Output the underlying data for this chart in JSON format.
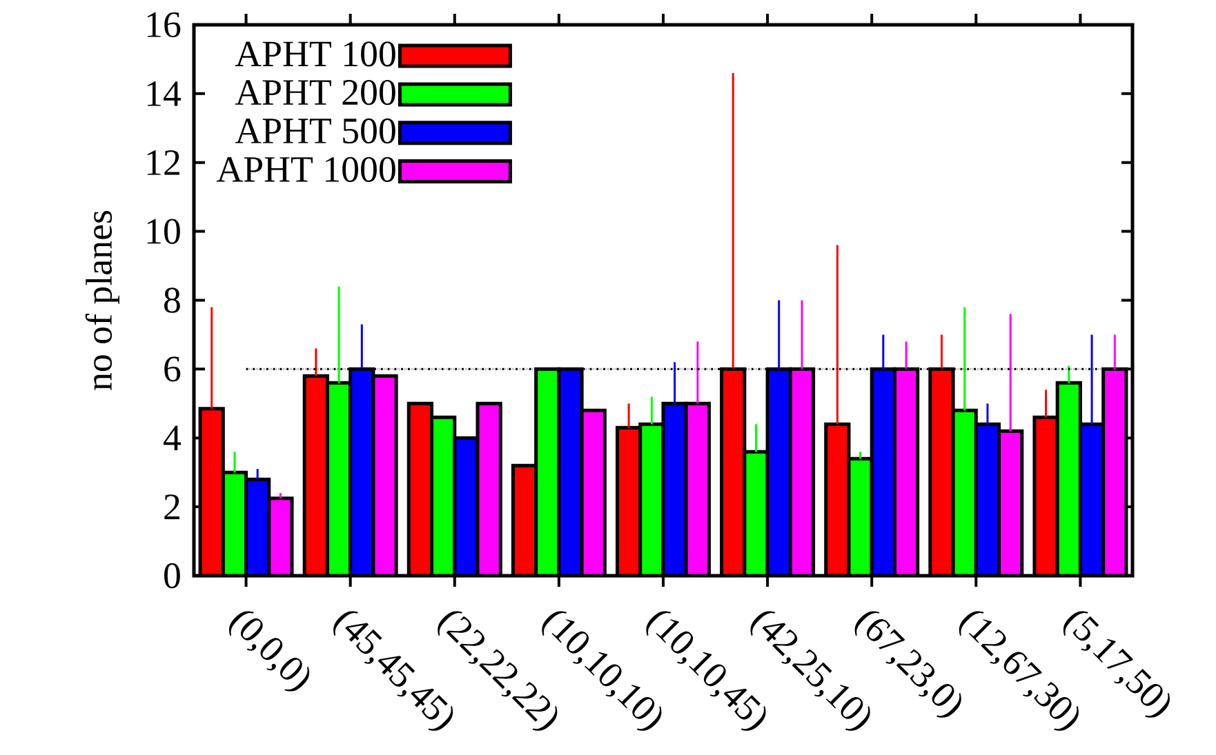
{
  "chart_data": {
    "type": "bar",
    "ylabel": "no of planes",
    "categories": [
      "(0,0,0)",
      "(45,45,45)",
      "(22,22,22)",
      "(10,10,10)",
      "(10,10,45)",
      "(42,25,10)",
      "(67,23,0)",
      "(12,67,30)",
      "(5,17,50)"
    ],
    "series": [
      {
        "name": "APHT 100",
        "color": "#ff0000",
        "values": [
          4.85,
          5.8,
          5.0,
          3.2,
          4.3,
          6.0,
          4.4,
          6.0,
          4.6
        ],
        "errors": [
          [
            4.85,
            7.8
          ],
          [
            5.8,
            6.6
          ],
          null,
          null,
          [
            4.3,
            5.0
          ],
          [
            6.0,
            14.6
          ],
          [
            4.4,
            9.6
          ],
          [
            6.0,
            7.0
          ],
          [
            4.6,
            5.4
          ]
        ]
      },
      {
        "name": "APHT 200",
        "color": "#00ff00",
        "values": [
          3.0,
          5.6,
          4.6,
          6.0,
          4.4,
          3.6,
          3.4,
          4.8,
          5.6
        ],
        "errors": [
          [
            3.0,
            3.6
          ],
          [
            5.6,
            8.4
          ],
          null,
          null,
          [
            4.4,
            5.2
          ],
          [
            3.6,
            4.4
          ],
          [
            3.4,
            3.6
          ],
          [
            4.8,
            7.8
          ],
          [
            5.6,
            6.1
          ]
        ]
      },
      {
        "name": "APHT 500",
        "color": "#0000ff",
        "values": [
          2.8,
          6.0,
          4.0,
          6.0,
          5.0,
          6.0,
          6.0,
          4.4,
          4.4
        ],
        "errors": [
          [
            2.8,
            3.1
          ],
          [
            6.0,
            7.3
          ],
          null,
          null,
          [
            5.0,
            6.2
          ],
          [
            6.0,
            8.0
          ],
          [
            6.0,
            7.0
          ],
          [
            4.4,
            5.0
          ],
          [
            4.4,
            7.0
          ]
        ]
      },
      {
        "name": "APHT 1000",
        "color": "#ff00ff",
        "values": [
          2.25,
          5.8,
          5.0,
          4.8,
          5.0,
          6.0,
          6.0,
          4.2,
          6.0
        ],
        "errors": [
          [
            2.25,
            2.4
          ],
          null,
          null,
          null,
          [
            5.0,
            6.8
          ],
          [
            6.0,
            8.0
          ],
          [
            6.0,
            6.8
          ],
          [
            4.2,
            7.6
          ],
          [
            6.0,
            7.0
          ]
        ]
      }
    ],
    "ylim": [
      0,
      16
    ],
    "yticks": [
      0,
      2,
      4,
      6,
      8,
      10,
      12,
      14,
      16
    ],
    "ref_lines": [
      {
        "axis": "y",
        "value": 6,
        "color": "#000000",
        "line_style": "dashdot"
      }
    ],
    "legend": "top left",
    "grid": false
  }
}
